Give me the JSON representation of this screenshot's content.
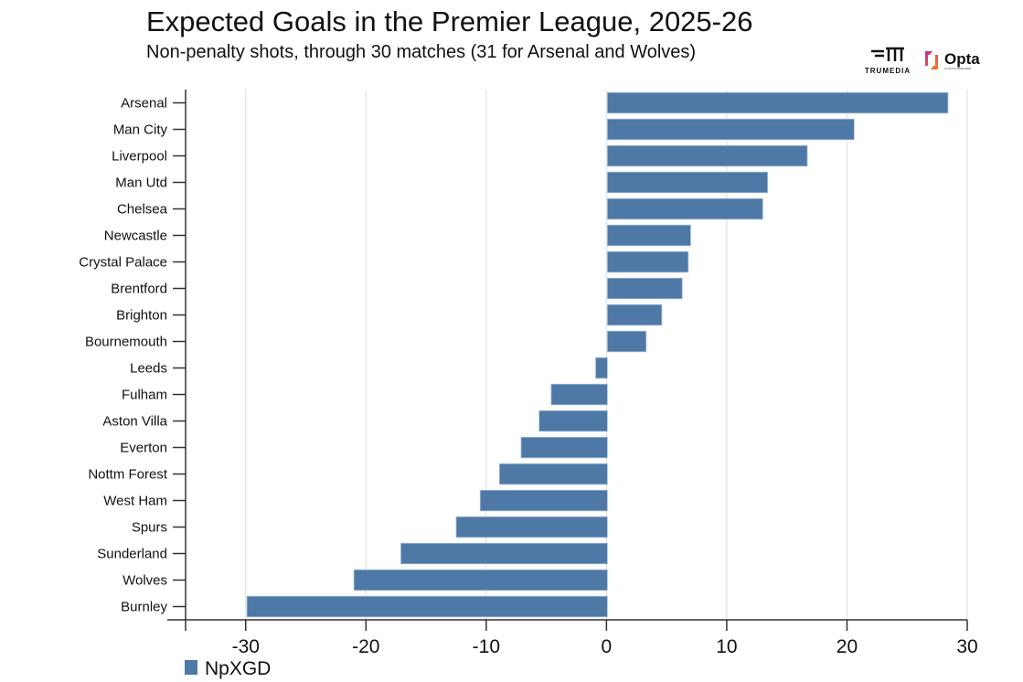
{
  "title": "Expected Goals in the Premier League, 2025-26",
  "subtitle": "Non-penalty shots, through 30 matches (31 for Arsenal and Wolves)",
  "logos": {
    "trumedia": "TRUMEDIA",
    "opta": "Opta",
    "opta_sub": "by STATS PERFORM"
  },
  "colors": {
    "bar": "#4e79a7",
    "grid": "#dddddd",
    "axis": "#333333"
  },
  "chart_data": {
    "type": "bar",
    "orientation": "horizontal",
    "categories": [
      "Arsenal",
      "Man City",
      "Liverpool",
      "Man Utd",
      "Chelsea",
      "Newcastle",
      "Crystal Palace",
      "Brentford",
      "Brighton",
      "Bournemouth",
      "Leeds",
      "Fulham",
      "Aston Villa",
      "Everton",
      "Nottm Forest",
      "West Ham",
      "Spurs",
      "Sunderland",
      "Wolves",
      "Burnley"
    ],
    "series": [
      {
        "name": "NpXGD",
        "values": [
          28.4,
          20.6,
          16.7,
          13.4,
          13.0,
          7.0,
          6.8,
          6.3,
          4.6,
          3.3,
          -0.9,
          -4.6,
          -5.6,
          -7.1,
          -8.9,
          -10.5,
          -12.5,
          -17.1,
          -21.0,
          -29.9
        ]
      }
    ],
    "xlim": [
      -35,
      30
    ],
    "xticks": [
      -30,
      -20,
      -10,
      0,
      10,
      20,
      30
    ],
    "grid": "vertical",
    "legend": "bottom-left"
  }
}
